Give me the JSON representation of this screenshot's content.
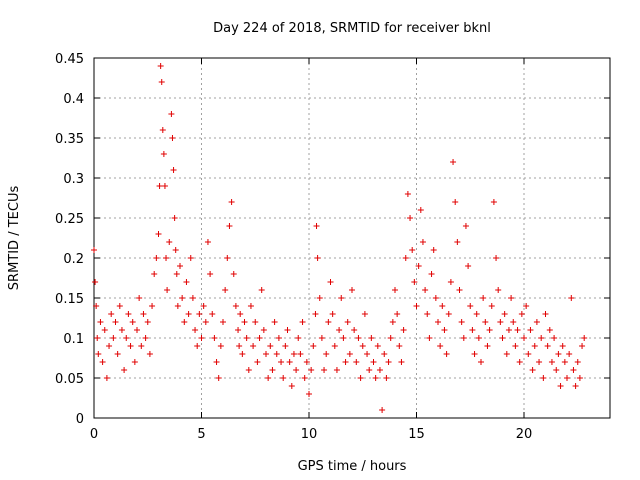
{
  "chart_data": {
    "type": "scatter",
    "title": "Day 224 of 2018, SRMTID for receiver bknl",
    "xlabel": "GPS time / hours",
    "ylabel": "SRMTID / TECUs",
    "xlim": [
      0,
      24
    ],
    "ylim": [
      0,
      0.45
    ],
    "xticks": [
      0,
      5,
      10,
      15,
      20
    ],
    "xtick_labels": [
      "0",
      "5",
      "10",
      "15",
      "20"
    ],
    "yticks": [
      0,
      0.05,
      0.1,
      0.15,
      0.2,
      0.25,
      0.3,
      0.35,
      0.4,
      0.45
    ],
    "ytick_labels": [
      "0",
      "0.05",
      "0.1",
      "0.15",
      "0.2",
      "0.25",
      "0.3",
      "0.35",
      "0.4",
      "0.45"
    ],
    "grid": true,
    "marker": "+",
    "color": "#e00000",
    "series": [
      {
        "name": "SRMTID",
        "x": [
          0.0,
          0.05,
          0.1,
          0.15,
          0.2,
          0.3,
          0.4,
          0.5,
          0.6,
          0.7,
          0.8,
          0.9,
          1.0,
          1.1,
          1.2,
          1.3,
          1.4,
          1.5,
          1.6,
          1.7,
          1.8,
          1.9,
          2.0,
          2.1,
          2.2,
          2.3,
          2.4,
          2.5,
          2.6,
          2.7,
          2.8,
          2.9,
          3.0,
          3.05,
          3.1,
          3.15,
          3.2,
          3.25,
          3.3,
          3.35,
          3.4,
          3.5,
          3.6,
          3.65,
          3.7,
          3.75,
          3.8,
          3.85,
          3.9,
          4.0,
          4.1,
          4.2,
          4.3,
          4.4,
          4.5,
          4.6,
          4.7,
          4.8,
          4.9,
          5.0,
          5.1,
          5.2,
          5.3,
          5.4,
          5.5,
          5.6,
          5.7,
          5.8,
          5.9,
          6.0,
          6.1,
          6.2,
          6.3,
          6.4,
          6.5,
          6.6,
          6.7,
          6.75,
          6.8,
          6.9,
          7.0,
          7.1,
          7.2,
          7.3,
          7.4,
          7.5,
          7.6,
          7.7,
          7.8,
          7.9,
          8.0,
          8.1,
          8.2,
          8.3,
          8.4,
          8.5,
          8.6,
          8.7,
          8.8,
          8.9,
          9.0,
          9.1,
          9.2,
          9.3,
          9.4,
          9.5,
          9.6,
          9.7,
          9.8,
          9.9,
          10.0,
          10.1,
          10.2,
          10.3,
          10.35,
          10.4,
          10.5,
          10.6,
          10.7,
          10.8,
          10.9,
          11.0,
          11.1,
          11.2,
          11.3,
          11.4,
          11.5,
          11.6,
          11.7,
          11.8,
          11.9,
          12.0,
          12.1,
          12.2,
          12.3,
          12.4,
          12.5,
          12.6,
          12.7,
          12.8,
          12.9,
          13.0,
          13.1,
          13.2,
          13.3,
          13.4,
          13.5,
          13.6,
          13.7,
          13.8,
          13.9,
          14.0,
          14.1,
          14.2,
          14.3,
          14.4,
          14.5,
          14.6,
          14.7,
          14.8,
          14.9,
          15.0,
          15.1,
          15.2,
          15.3,
          15.4,
          15.5,
          15.6,
          15.7,
          15.8,
          15.9,
          16.0,
          16.1,
          16.2,
          16.3,
          16.4,
          16.5,
          16.6,
          16.7,
          16.8,
          16.9,
          17.0,
          17.1,
          17.2,
          17.3,
          17.4,
          17.5,
          17.6,
          17.7,
          17.8,
          17.9,
          18.0,
          18.1,
          18.2,
          18.3,
          18.4,
          18.5,
          18.6,
          18.7,
          18.8,
          18.9,
          19.0,
          19.1,
          19.2,
          19.3,
          19.4,
          19.5,
          19.6,
          19.7,
          19.8,
          19.9,
          20.0,
          20.1,
          20.2,
          20.3,
          20.4,
          20.5,
          20.6,
          20.7,
          20.8,
          20.9,
          21.0,
          21.1,
          21.2,
          21.3,
          21.4,
          21.5,
          21.6,
          21.7,
          21.8,
          21.9,
          22.0,
          22.1,
          22.2,
          22.3,
          22.4,
          22.5,
          22.6,
          22.7,
          22.8
        ],
        "y": [
          0.21,
          0.17,
          0.14,
          0.1,
          0.08,
          0.12,
          0.07,
          0.11,
          0.05,
          0.09,
          0.13,
          0.1,
          0.12,
          0.08,
          0.14,
          0.11,
          0.06,
          0.1,
          0.13,
          0.09,
          0.12,
          0.07,
          0.11,
          0.15,
          0.09,
          0.13,
          0.1,
          0.12,
          0.08,
          0.14,
          0.18,
          0.2,
          0.23,
          0.29,
          0.44,
          0.42,
          0.36,
          0.33,
          0.29,
          0.2,
          0.16,
          0.22,
          0.38,
          0.35,
          0.31,
          0.25,
          0.21,
          0.18,
          0.14,
          0.19,
          0.15,
          0.12,
          0.17,
          0.13,
          0.2,
          0.15,
          0.11,
          0.09,
          0.13,
          0.1,
          0.14,
          0.12,
          0.22,
          0.18,
          0.13,
          0.1,
          0.07,
          0.05,
          0.09,
          0.12,
          0.16,
          0.2,
          0.24,
          0.27,
          0.18,
          0.14,
          0.11,
          0.09,
          0.13,
          0.08,
          0.12,
          0.1,
          0.06,
          0.14,
          0.09,
          0.12,
          0.07,
          0.1,
          0.16,
          0.11,
          0.08,
          0.05,
          0.09,
          0.06,
          0.12,
          0.08,
          0.1,
          0.07,
          0.05,
          0.09,
          0.11,
          0.07,
          0.04,
          0.08,
          0.06,
          0.1,
          0.08,
          0.12,
          0.05,
          0.07,
          0.03,
          0.06,
          0.09,
          0.13,
          0.24,
          0.2,
          0.15,
          0.1,
          0.06,
          0.08,
          0.12,
          0.17,
          0.13,
          0.09,
          0.06,
          0.11,
          0.15,
          0.1,
          0.07,
          0.12,
          0.08,
          0.16,
          0.11,
          0.07,
          0.1,
          0.05,
          0.09,
          0.13,
          0.08,
          0.06,
          0.1,
          0.07,
          0.05,
          0.09,
          0.06,
          0.01,
          0.08,
          0.05,
          0.07,
          0.1,
          0.12,
          0.16,
          0.13,
          0.09,
          0.07,
          0.11,
          0.2,
          0.28,
          0.25,
          0.21,
          0.17,
          0.14,
          0.19,
          0.26,
          0.22,
          0.16,
          0.13,
          0.1,
          0.18,
          0.21,
          0.15,
          0.12,
          0.09,
          0.14,
          0.11,
          0.08,
          0.13,
          0.17,
          0.32,
          0.27,
          0.22,
          0.16,
          0.12,
          0.1,
          0.24,
          0.19,
          0.14,
          0.11,
          0.08,
          0.13,
          0.1,
          0.07,
          0.15,
          0.12,
          0.09,
          0.11,
          0.14,
          0.27,
          0.2,
          0.16,
          0.12,
          0.1,
          0.13,
          0.08,
          0.11,
          0.15,
          0.12,
          0.09,
          0.11,
          0.07,
          0.13,
          0.1,
          0.14,
          0.08,
          0.11,
          0.06,
          0.09,
          0.12,
          0.07,
          0.1,
          0.05,
          0.13,
          0.09,
          0.11,
          0.07,
          0.1,
          0.06,
          0.08,
          0.04,
          0.09,
          0.07,
          0.05,
          0.08,
          0.15,
          0.06,
          0.04,
          0.07,
          0.05,
          0.09,
          0.1
        ]
      }
    ]
  }
}
